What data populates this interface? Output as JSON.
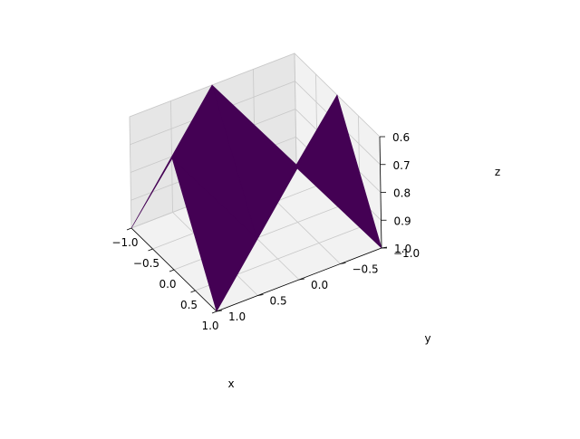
{
  "chart_data": {
    "type": "surface",
    "title": "",
    "xlabel": "x",
    "ylabel": "y",
    "zlabel": "z",
    "xlim": [
      -1.0,
      1.0
    ],
    "ylim": [
      -1.0,
      1.0
    ],
    "zlim": [
      1.0,
      0.6
    ],
    "x_ticks": [
      -1.0,
      -0.5,
      0.0,
      0.5,
      1.0
    ],
    "y_ticks": [
      -1.0,
      -0.5,
      0.0,
      0.5,
      1.0
    ],
    "z_ticks": [
      0.6,
      0.7,
      0.8,
      0.9,
      1.0
    ],
    "x_tick_labels": [
      "−1.0",
      "−0.5",
      "0.0",
      "0.5",
      "1.0"
    ],
    "y_tick_labels": [
      "−1.0",
      "−0.5",
      "0.0",
      "0.5",
      "1.0"
    ],
    "z_tick_labels": [
      "0.6",
      "0.7",
      "0.8",
      "0.9",
      "1.0"
    ],
    "x": [
      -1.0,
      0.0,
      1.0
    ],
    "y": [
      -1.0,
      0.0,
      1.0
    ],
    "z": [
      [
        1.0,
        0.6,
        1.0
      ],
      [
        0.6,
        1.0,
        0.6
      ],
      [
        1.0,
        0.6,
        1.0
      ]
    ],
    "surface_color": "#440154",
    "grid": true
  }
}
